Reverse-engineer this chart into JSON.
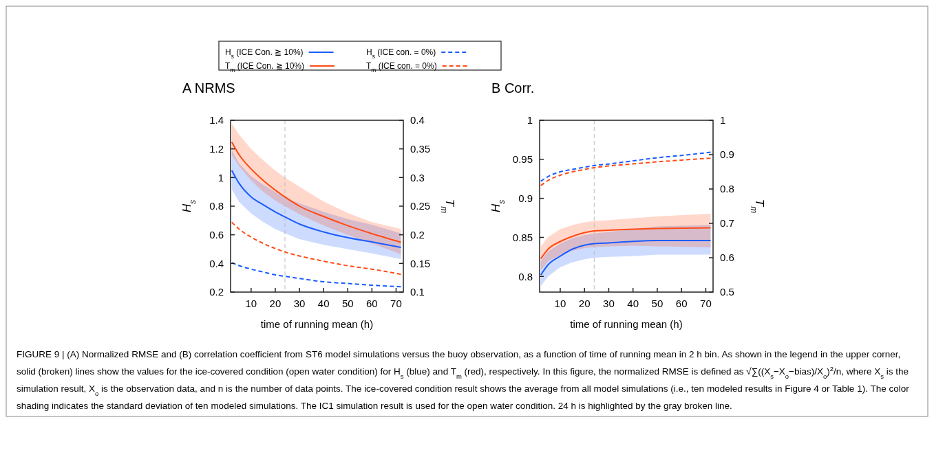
{
  "chart_data": [
    {
      "type": "line",
      "title": "A NRMS",
      "xlabel": "time of running mean (h)",
      "ylabel": "H$_{s}$",
      "y2label": "T$_{m}$",
      "x": [
        2,
        5,
        10,
        15,
        20,
        24,
        30,
        40,
        50,
        60,
        72
      ],
      "xlim": [
        1.5,
        73
      ],
      "xticks": [
        10,
        20,
        30,
        40,
        50,
        60,
        70
      ],
      "ylim": [
        0.2,
        1.4
      ],
      "yticks": [
        0.2,
        0.4,
        0.6,
        0.8,
        1,
        1.2,
        1.4
      ],
      "y2lim": [
        0.1,
        0.4
      ],
      "y2ticks": [
        0.1,
        0.15,
        0.2,
        0.25,
        0.3,
        0.35,
        0.4
      ],
      "legend": "top",
      "ref_lines": [
        {
          "axis": "x",
          "value": 24,
          "color": "#bbbbbb",
          "line_style": "dashed"
        }
      ],
      "series": [
        {
          "name": "H$_{s}$ (ICE Con. ≧ 10%)",
          "color": "#1a5cff",
          "line_style": "solid",
          "values": [
            1.05,
            0.96,
            0.865,
            0.81,
            0.76,
            0.725,
            0.675,
            0.62,
            0.58,
            0.55,
            0.512
          ],
          "lower": [
            0.92,
            0.83,
            0.75,
            0.69,
            0.64,
            0.61,
            0.57,
            0.53,
            0.5,
            0.47,
            0.43
          ],
          "upper": [
            1.19,
            1.1,
            1.01,
            0.95,
            0.9,
            0.86,
            0.82,
            0.76,
            0.71,
            0.67,
            0.61
          ]
        },
        {
          "name": "H$_{s}$ (ICE con. = 0%)",
          "color": "#1a5cff",
          "line_style": "dashed",
          "values": [
            0.405,
            0.385,
            0.36,
            0.34,
            0.32,
            0.31,
            0.295,
            0.272,
            0.26,
            0.248,
            0.237
          ]
        },
        {
          "name": "T$_{m}$ (ICE Con. ≧ 10%)",
          "color": "#ff4a14",
          "line_style": "solid",
          "axis": "y2",
          "values": [
            0.362,
            0.34,
            0.315,
            0.295,
            0.278,
            0.266,
            0.25,
            0.232,
            0.216,
            0.202,
            0.187
          ],
          "lower": [
            0.34,
            0.32,
            0.295,
            0.275,
            0.26,
            0.25,
            0.236,
            0.216,
            0.2,
            0.185,
            0.166
          ],
          "upper": [
            0.394,
            0.375,
            0.35,
            0.33,
            0.312,
            0.3,
            0.284,
            0.258,
            0.238,
            0.222,
            0.21
          ]
        },
        {
          "name": "T$_{m}$ (ICE con. = 0%)",
          "color": "#ff4a14",
          "line_style": "dashed",
          "axis": "y2",
          "values": [
            0.222,
            0.21,
            0.196,
            0.185,
            0.176,
            0.17,
            0.163,
            0.154,
            0.146,
            0.14,
            0.131
          ]
        }
      ],
      "annotations": [
        "FIGURE 9 | (A) Normalized RMSE and (B) correlation coefficient from ST6 model simulations versus the buoy observation, as a function of time of running mean in 2 h bin. As shown in the legend in the upper corner, solid (broken) lines show the values for the ice-covered condition (open water condition) for H$_{s}$ (blue) and T$_{m}$ (red), respectively. In this figure, the normalized RMSE is defined as √∑((X$_{s}$−X$_{o}$−bias)/X$_{o}$)$^{2}$/n, where X$_{s}$ is the simulation result, X$_{o}$ is the observation data, and n is the number of data points. The ice-covered condition result shows the average from all model simulations (i.e., ten modeled results in Figure 4 or Table 1). The color shading indicates the standard deviation of ten modeled simulations. The IC1 simulation result is used for the open water condition. 24 h is highlighted by the gray broken line."
      ]
    },
    {
      "type": "line",
      "title": "B Corr.",
      "xlabel": "time of running mean (h)",
      "ylabel": "H$_{s}$",
      "y2label": "T$_{m}$",
      "x": [
        2,
        5,
        10,
        15,
        20,
        24,
        30,
        40,
        50,
        60,
        72
      ],
      "xlim": [
        1.5,
        73
      ],
      "xticks": [
        10,
        20,
        30,
        40,
        50,
        60,
        70
      ],
      "ylim": [
        0.78,
        1
      ],
      "yticks": [
        0.8,
        0.85,
        0.9,
        0.95,
        1
      ],
      "y2lim": [
        0.5,
        1
      ],
      "y2ticks": [
        0.5,
        0.6,
        0.7,
        0.8,
        0.9,
        1
      ],
      "ref_lines": [
        {
          "axis": "x",
          "value": 24,
          "color": "#bbbbbb",
          "line_style": "dashed"
        }
      ],
      "series": [
        {
          "color": "#1a5cff",
          "line_style": "solid",
          "values": [
            0.802,
            0.815,
            0.826,
            0.835,
            0.84,
            0.842,
            0.843,
            0.845,
            0.846,
            0.846,
            0.846
          ],
          "lower": [
            0.788,
            0.8,
            0.812,
            0.818,
            0.822,
            0.824,
            0.825,
            0.826,
            0.828,
            0.828,
            0.828
          ],
          "upper": [
            0.82,
            0.832,
            0.842,
            0.849,
            0.853,
            0.855,
            0.857,
            0.861,
            0.864,
            0.865,
            0.866
          ]
        },
        {
          "color": "#1a5cff",
          "line_style": "dashed",
          "values": [
            0.922,
            0.928,
            0.934,
            0.937,
            0.94,
            0.942,
            0.944,
            0.948,
            0.952,
            0.955,
            0.959
          ]
        },
        {
          "color": "#ff4a14",
          "line_style": "solid",
          "axis": "y2",
          "values": [
            0.597,
            0.625,
            0.647,
            0.662,
            0.673,
            0.678,
            0.68,
            0.683,
            0.685,
            0.686,
            0.687
          ],
          "lower": [
            0.563,
            0.59,
            0.607,
            0.62,
            0.628,
            0.631,
            0.633,
            0.635,
            0.633,
            0.632,
            0.63
          ],
          "upper": [
            0.633,
            0.66,
            0.683,
            0.695,
            0.703,
            0.707,
            0.709,
            0.715,
            0.72,
            0.724,
            0.728
          ]
        },
        {
          "color": "#ff4a14",
          "line_style": "dashed",
          "axis": "y2",
          "values": [
            0.81,
            0.825,
            0.84,
            0.85,
            0.857,
            0.862,
            0.867,
            0.873,
            0.879,
            0.884,
            0.89
          ]
        }
      ]
    }
  ]
}
